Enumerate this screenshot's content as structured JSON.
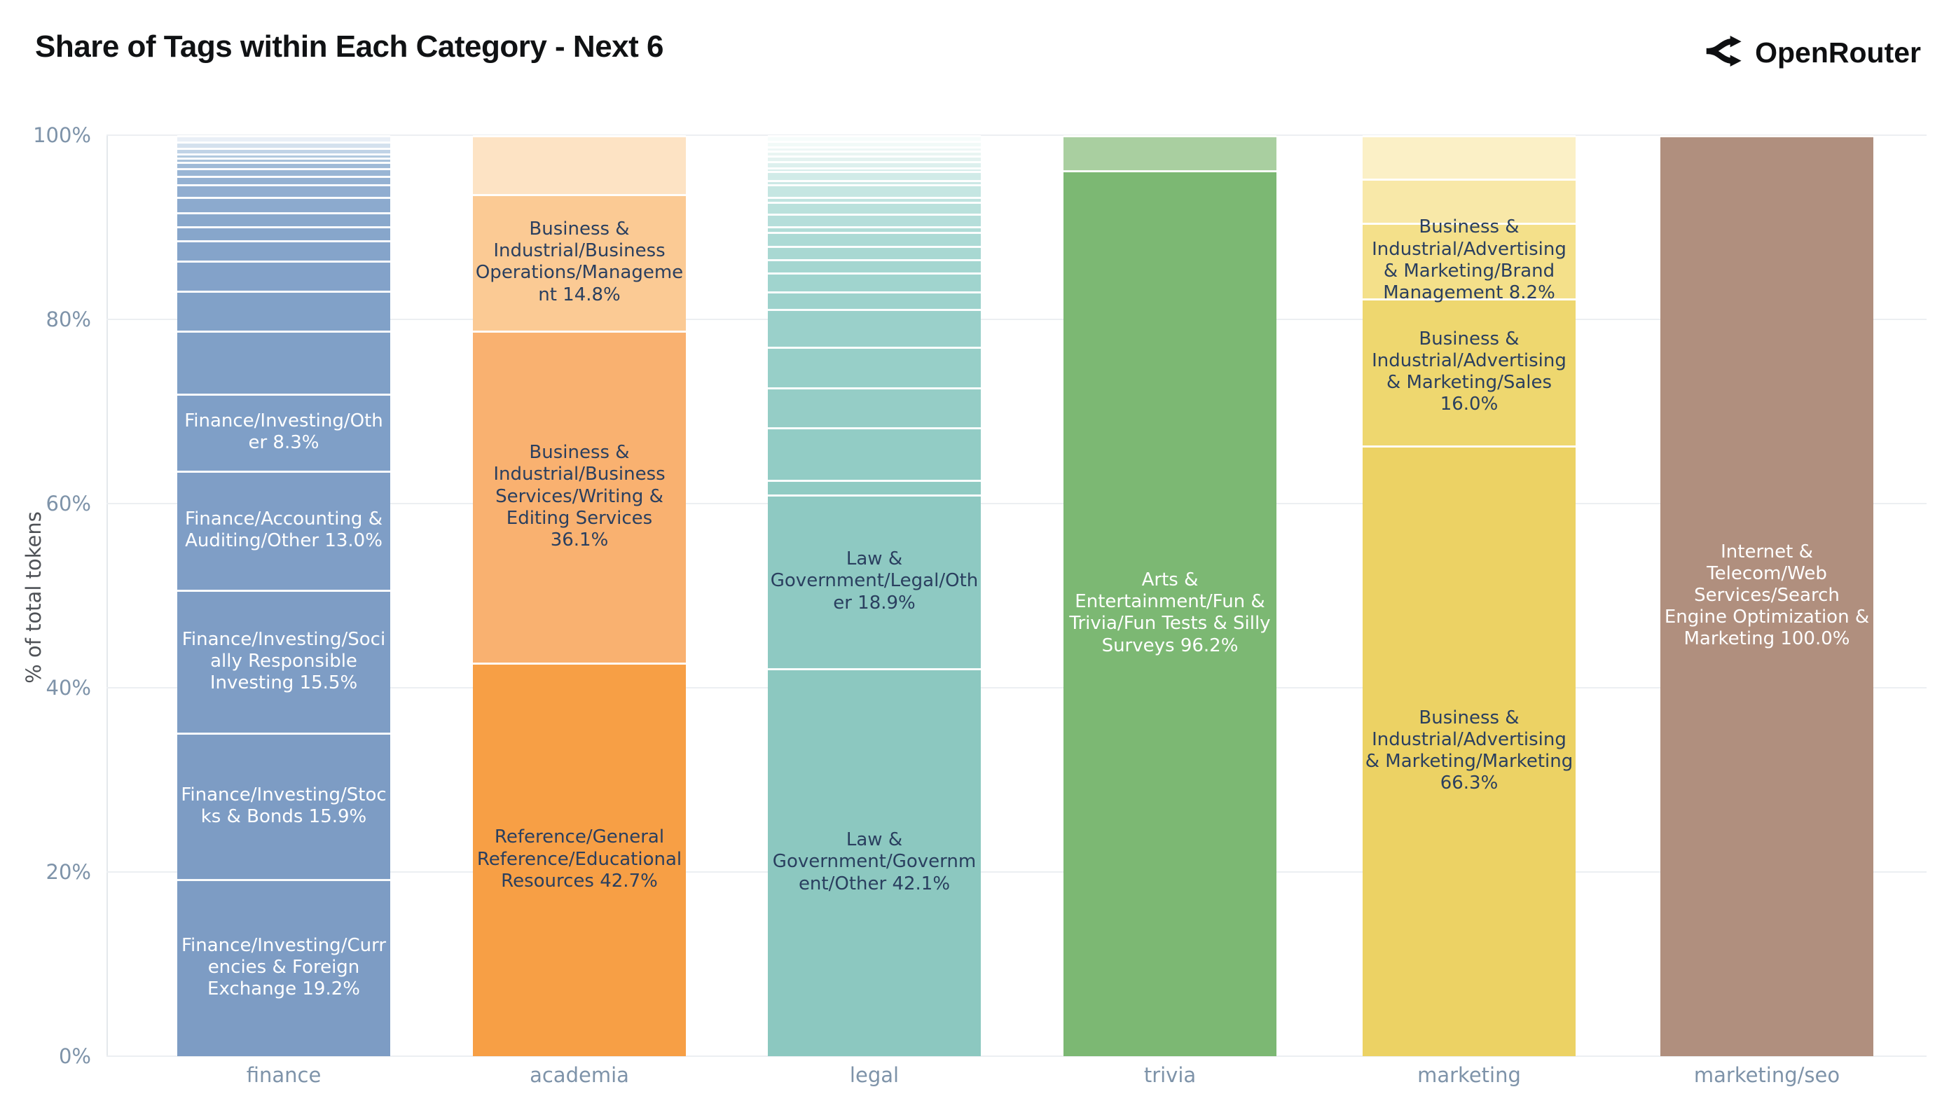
{
  "header": {
    "title": "Share of Tags within Each Category - Next 6",
    "brand": {
      "name": "OpenRouter",
      "icon": "openrouter-fork-arrows",
      "color": "#0e0f11"
    }
  },
  "chart_data": {
    "type": "bar",
    "stacked": true,
    "title": "Share of Tags within Each Category - Next 6",
    "xlabel": "",
    "ylabel": "% of total tokens",
    "ylim": [
      0,
      100
    ],
    "grid": true,
    "legend": "none",
    "yticks": [
      {
        "label": "0%",
        "value": 0
      },
      {
        "label": "20%",
        "value": 20
      },
      {
        "label": "40%",
        "value": 40
      },
      {
        "label": "60%",
        "value": 60
      },
      {
        "label": "80%",
        "value": 80
      },
      {
        "label": "100%",
        "value": 100
      }
    ],
    "categories": [
      "finance",
      "academia",
      "legal",
      "trivia",
      "marketing",
      "marketing/seo"
    ],
    "bars": [
      {
        "category": "finance",
        "base_color": "#7d9cc4",
        "label_color": "#ffffff",
        "segments": [
          {
            "value": 19.2,
            "color": "#7d9cc4",
            "label": "Finance/Investing/Currencies & Foreign Exchange 19.2%"
          },
          {
            "value": 15.9,
            "color": "#7d9cc4",
            "label": "Finance/Investing/Stocks & Bonds 15.9%"
          },
          {
            "value": 15.5,
            "color": "#7e9dc5",
            "label": "Finance/Investing/Socially Responsible Investing 15.5%"
          },
          {
            "value": 13.0,
            "color": "#7f9ec6",
            "label": "Finance/Accounting & Auditing/Other 13.0%"
          },
          {
            "value": 8.3,
            "color": "#7f9fc7",
            "label": "Finance/Investing/Other 8.3%"
          },
          {
            "value": 6.9,
            "color": "#80a0c7",
            "label": null
          },
          {
            "value": 4.3,
            "color": "#81a1c8",
            "label": null
          },
          {
            "value": 3.3,
            "color": "#83a2c9",
            "label": null
          },
          {
            "value": 2.2,
            "color": "#85a4ca",
            "label": null
          },
          {
            "value": 1.5,
            "color": "#87a6cb",
            "label": null
          },
          {
            "value": 1.5,
            "color": "#89a8cc",
            "label": null
          },
          {
            "value": 1.7,
            "color": "#8caace",
            "label": null
          },
          {
            "value": 1.4,
            "color": "#90add0",
            "label": null
          },
          {
            "value": 0.9,
            "color": "#94b1d2",
            "label": null
          },
          {
            "value": 0.8,
            "color": "#99b5d4",
            "label": null
          },
          {
            "value": 0.7,
            "color": "#9fbad7",
            "label": null
          },
          {
            "value": 0.5,
            "color": "#a7c0da",
            "label": null
          },
          {
            "value": 0.4,
            "color": "#b1c9df",
            "label": null
          },
          {
            "value": 0.6,
            "color": "#c0d3e6",
            "label": null
          },
          {
            "value": 0.7,
            "color": "#d4e1ee",
            "label": null
          },
          {
            "value": 0.7,
            "color": "#e9eff6",
            "label": null
          }
        ]
      },
      {
        "category": "academia",
        "base_color": "#f79f45",
        "label_color": "#2a3f5f",
        "segments": [
          {
            "value": 42.7,
            "color": "#f79f45",
            "label": "Reference/General Reference/Educational Resources 42.7%"
          },
          {
            "value": 36.1,
            "color": "#f9b170",
            "label": "Business & Industrial/Business Services/Writing & Editing Services 36.1%"
          },
          {
            "value": 14.8,
            "color": "#fbca94",
            "label": "Business & Industrial/Business Operations/Management 14.8%"
          },
          {
            "value": 6.4,
            "color": "#fde3c4",
            "label": null
          }
        ]
      },
      {
        "category": "legal",
        "base_color": "#8cc8c0",
        "label_color": "#2a3f5f",
        "segments": [
          {
            "value": 42.1,
            "color": "#8cc8c0",
            "label": "Law & Government/Government/Other 42.1%"
          },
          {
            "value": 18.9,
            "color": "#8ec9c2",
            "label": "Law & Government/Legal/Other 18.9%"
          },
          {
            "value": 1.6,
            "color": "#90cbc3",
            "label": null
          },
          {
            "value": 5.7,
            "color": "#92ccc5",
            "label": null
          },
          {
            "value": 4.3,
            "color": "#95cdc6",
            "label": null
          },
          {
            "value": 4.4,
            "color": "#97cfc8",
            "label": null
          },
          {
            "value": 4.1,
            "color": "#9ad0ca",
            "label": null
          },
          {
            "value": 1.9,
            "color": "#9dd2cc",
            "label": null
          },
          {
            "value": 2.1,
            "color": "#a0d4ce",
            "label": null
          },
          {
            "value": 1.4,
            "color": "#a4d6d0",
            "label": null
          },
          {
            "value": 1.5,
            "color": "#a8d8d2",
            "label": null
          },
          {
            "value": 1.5,
            "color": "#acdad5",
            "label": null
          },
          {
            "value": 0.6,
            "color": "#b0dcd7",
            "label": null
          },
          {
            "value": 1.4,
            "color": "#b5deda",
            "label": null
          },
          {
            "value": 1.3,
            "color": "#bae1dc",
            "label": null
          },
          {
            "value": 0.5,
            "color": "#bfe3df",
            "label": null
          },
          {
            "value": 1.4,
            "color": "#c5e6e2",
            "label": null
          },
          {
            "value": 0.4,
            "color": "#cbe8e5",
            "label": null
          },
          {
            "value": 1.0,
            "color": "#d1ebe8",
            "label": null
          },
          {
            "value": 0.4,
            "color": "#d7edeb",
            "label": null
          },
          {
            "value": 0.7,
            "color": "#ddf0ee",
            "label": null
          },
          {
            "value": 0.6,
            "color": "#e3f2f0",
            "label": null
          },
          {
            "value": 0.5,
            "color": "#e9f5f3",
            "label": null
          },
          {
            "value": 0.5,
            "color": "#eef7f6",
            "label": null
          },
          {
            "value": 0.6,
            "color": "#f2faf8",
            "label": null
          },
          {
            "value": 0.6,
            "color": "#f6fcfb",
            "label": null
          }
        ]
      },
      {
        "category": "trivia",
        "base_color": "#7cb873",
        "label_color": "#ffffff",
        "segments": [
          {
            "value": 96.2,
            "color": "#7cb873",
            "label": "Arts & Entertainment/Fun & Trivia/Fun Tests & Silly Surveys 96.2%"
          },
          {
            "value": 3.8,
            "color": "#a9cfa0",
            "label": null
          }
        ]
      },
      {
        "category": "marketing",
        "base_color": "#ecd264",
        "label_color": "#2a3f5f",
        "segments": [
          {
            "value": 66.3,
            "color": "#ecd264",
            "label": "Business & Industrial/Advertising & Marketing/Marketing 66.3%"
          },
          {
            "value": 16.0,
            "color": "#eed76f",
            "label": "Business & Industrial/Advertising & Marketing/Sales 16.0%"
          },
          {
            "value": 8.2,
            "color": "#f4e08a",
            "label": "Business & Industrial/Advertising & Marketing/Brand Management 8.2%"
          },
          {
            "value": 4.8,
            "color": "#f8e8a8",
            "label": null
          },
          {
            "value": 4.7,
            "color": "#fbf0c6",
            "label": null
          }
        ]
      },
      {
        "category": "marketing/seo",
        "base_color": "#b08f7e",
        "label_color": "#ffffff",
        "segments": [
          {
            "value": 100.0,
            "color": "#b08f7e",
            "label": "Internet & Telecom/Web Services/Search Engine Optimization & Marketing 100.0%"
          }
        ]
      }
    ]
  }
}
